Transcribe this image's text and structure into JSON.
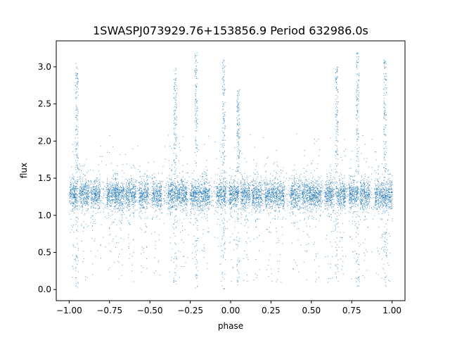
{
  "chart_data": {
    "type": "scatter",
    "title": "1SWASPJ073929.76+153856.9 Period 632986.0s",
    "xlabel": "phase",
    "ylabel": "flux",
    "xlim": [
      -1.08,
      1.08
    ],
    "ylim": [
      -0.15,
      3.35
    ],
    "grid": false,
    "marker_color": "#1f77b4",
    "xticks": [
      {
        "value": -1.0,
        "label": "−1.00"
      },
      {
        "value": -0.75,
        "label": "−0.75"
      },
      {
        "value": -0.5,
        "label": "−0.50"
      },
      {
        "value": -0.25,
        "label": "−0.25"
      },
      {
        "value": 0.0,
        "label": "0.00"
      },
      {
        "value": 0.25,
        "label": "0.25"
      },
      {
        "value": 0.5,
        "label": "0.50"
      },
      {
        "value": 0.75,
        "label": "0.75"
      },
      {
        "value": 1.0,
        "label": "1.00"
      }
    ],
    "yticks": [
      {
        "value": 0.0,
        "label": "0.0"
      },
      {
        "value": 0.5,
        "label": "0.5"
      },
      {
        "value": 1.0,
        "label": "1.0"
      },
      {
        "value": 1.5,
        "label": "1.5"
      },
      {
        "value": 2.0,
        "label": "2.0"
      },
      {
        "value": 2.5,
        "label": "2.5"
      },
      {
        "value": 3.0,
        "label": "3.0"
      }
    ],
    "baseline_flux": 1.28,
    "observing_clumps_phase": [
      -0.98,
      -0.91,
      -0.84,
      -0.74,
      -0.69,
      -0.62,
      -0.54,
      -0.46,
      -0.36,
      -0.3,
      -0.22,
      -0.16,
      -0.06,
      0.02,
      0.09,
      0.16,
      0.24,
      0.3,
      0.4,
      0.47,
      0.53,
      0.61,
      0.68,
      0.76,
      0.83,
      0.92,
      0.98
    ],
    "flare_spikes": [
      {
        "phase": -0.955,
        "peak_flux": 3.05
      },
      {
        "phase": -0.345,
        "peak_flux": 3.0
      },
      {
        "phase": -0.215,
        "peak_flux": 3.2
      },
      {
        "phase": -0.045,
        "peak_flux": 3.1
      },
      {
        "phase": 0.045,
        "peak_flux": 2.7
      },
      {
        "phase": 0.655,
        "peak_flux": 3.0
      },
      {
        "phase": 0.785,
        "peak_flux": 3.2
      },
      {
        "phase": 0.955,
        "peak_flux": 3.1
      }
    ]
  }
}
